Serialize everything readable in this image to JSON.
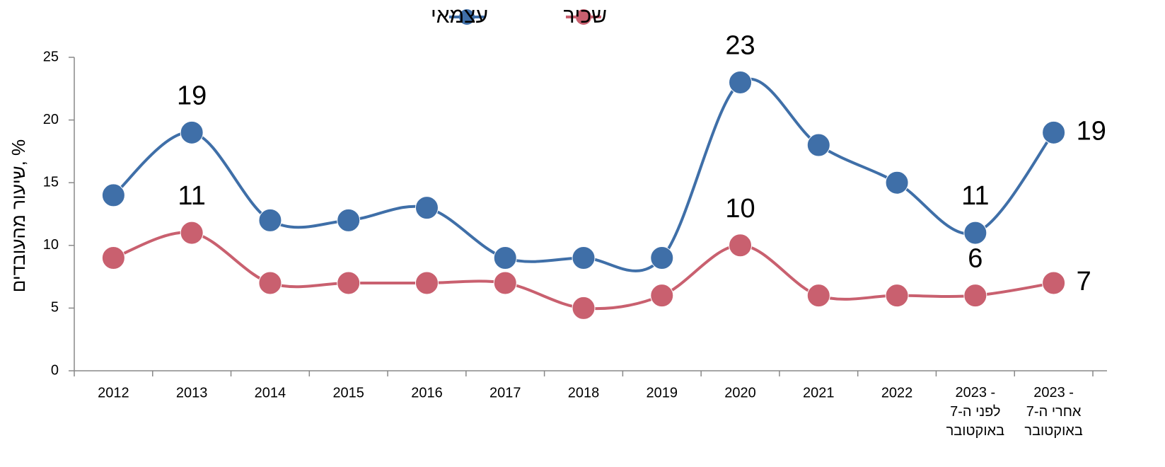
{
  "chart_data": {
    "type": "line",
    "ylabel": "שיעור מהעובדים, %",
    "categories": [
      "2012",
      "2013",
      "2014",
      "2015",
      "2016",
      "2017",
      "2018",
      "2019",
      "2020",
      "2021",
      "2022",
      "2023 -\nלפני ה-7\nבאוקטובר",
      "2023 -\nאחרי ה-7\nבאוקטובר"
    ],
    "series": [
      {
        "name": "עצמאי",
        "color": "#3f6fa8",
        "values": [
          14,
          19,
          12,
          12,
          13,
          9,
          9,
          9,
          23,
          18,
          15,
          11,
          19
        ],
        "value_labels": [
          null,
          "19",
          null,
          null,
          null,
          null,
          null,
          null,
          "23",
          null,
          null,
          "11",
          "19"
        ]
      },
      {
        "name": "שכיר",
        "color": "#c9606f",
        "values": [
          9,
          11,
          7,
          7,
          7,
          7,
          5,
          6,
          10,
          6,
          6,
          6,
          7
        ],
        "value_labels": [
          null,
          "11",
          null,
          null,
          null,
          null,
          null,
          null,
          "10",
          null,
          null,
          "6",
          "7"
        ]
      }
    ],
    "ylim": [
      0,
      25
    ],
    "yticks": [
      0,
      5,
      10,
      15,
      20,
      25
    ],
    "grid": false,
    "smooth": true,
    "legend": "top"
  }
}
